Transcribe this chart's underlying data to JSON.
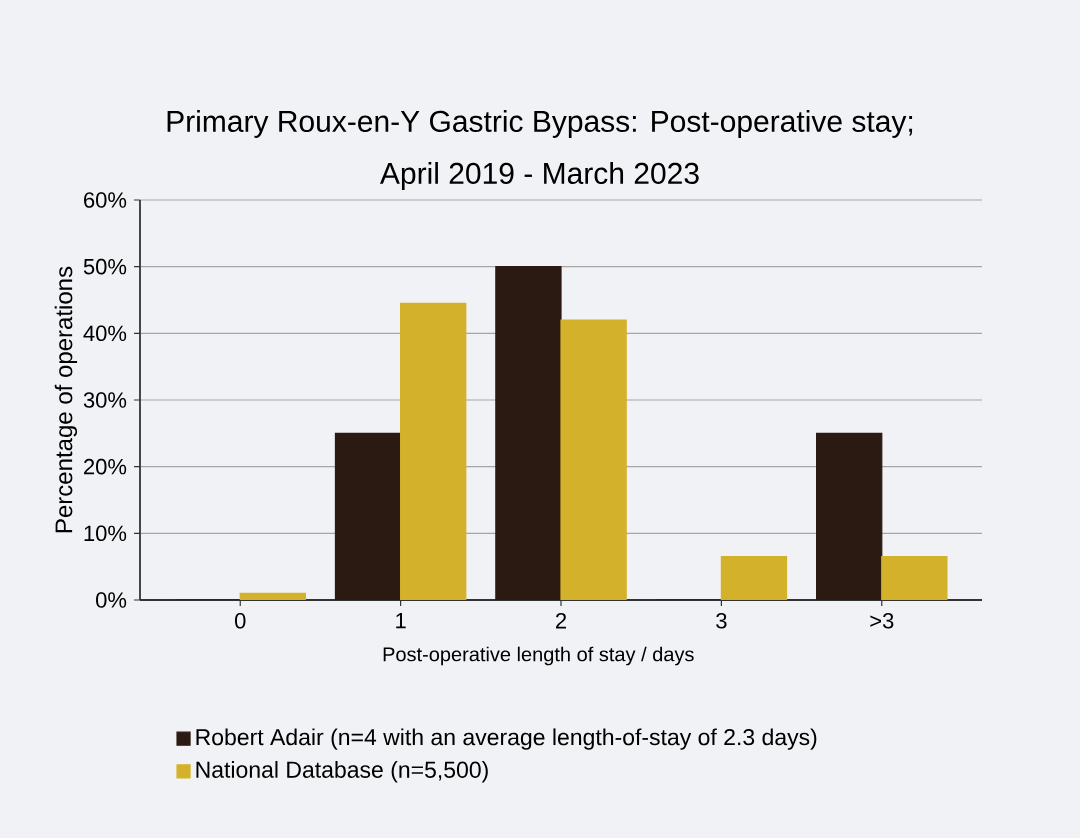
{
  "chart_data": {
    "type": "bar",
    "title": "Primary Roux-en-Y Gastric Bypass: Post-operative stay;",
    "subtitle": "April 2019 - March 2023",
    "xlabel": "Post-operative length of stay / days",
    "ylabel": "Percentage of operations",
    "categories": [
      "0",
      "1",
      "2",
      "3",
      ">3"
    ],
    "series": [
      {
        "name": "Robert Adair (n=4 with an average length-of-stay of 2.3 days)",
        "color": "#2b1a12",
        "values": [
          0,
          25,
          50,
          0,
          25
        ]
      },
      {
        "name": "National Database (n=5,500)",
        "color": "#d4b12a",
        "values": [
          1,
          44.5,
          42,
          6.5,
          6.5
        ]
      }
    ],
    "ylim": [
      0,
      60
    ],
    "yticks": [
      {
        "value": 0,
        "label": "0%"
      },
      {
        "value": 10,
        "label": "10%"
      },
      {
        "value": 20,
        "label": "20%"
      },
      {
        "value": 30,
        "label": "30%"
      },
      {
        "value": 40,
        "label": "40%"
      },
      {
        "value": 50,
        "label": "50%"
      },
      {
        "value": 60,
        "label": "60%"
      }
    ],
    "grid": "y",
    "legend": "bottom"
  }
}
